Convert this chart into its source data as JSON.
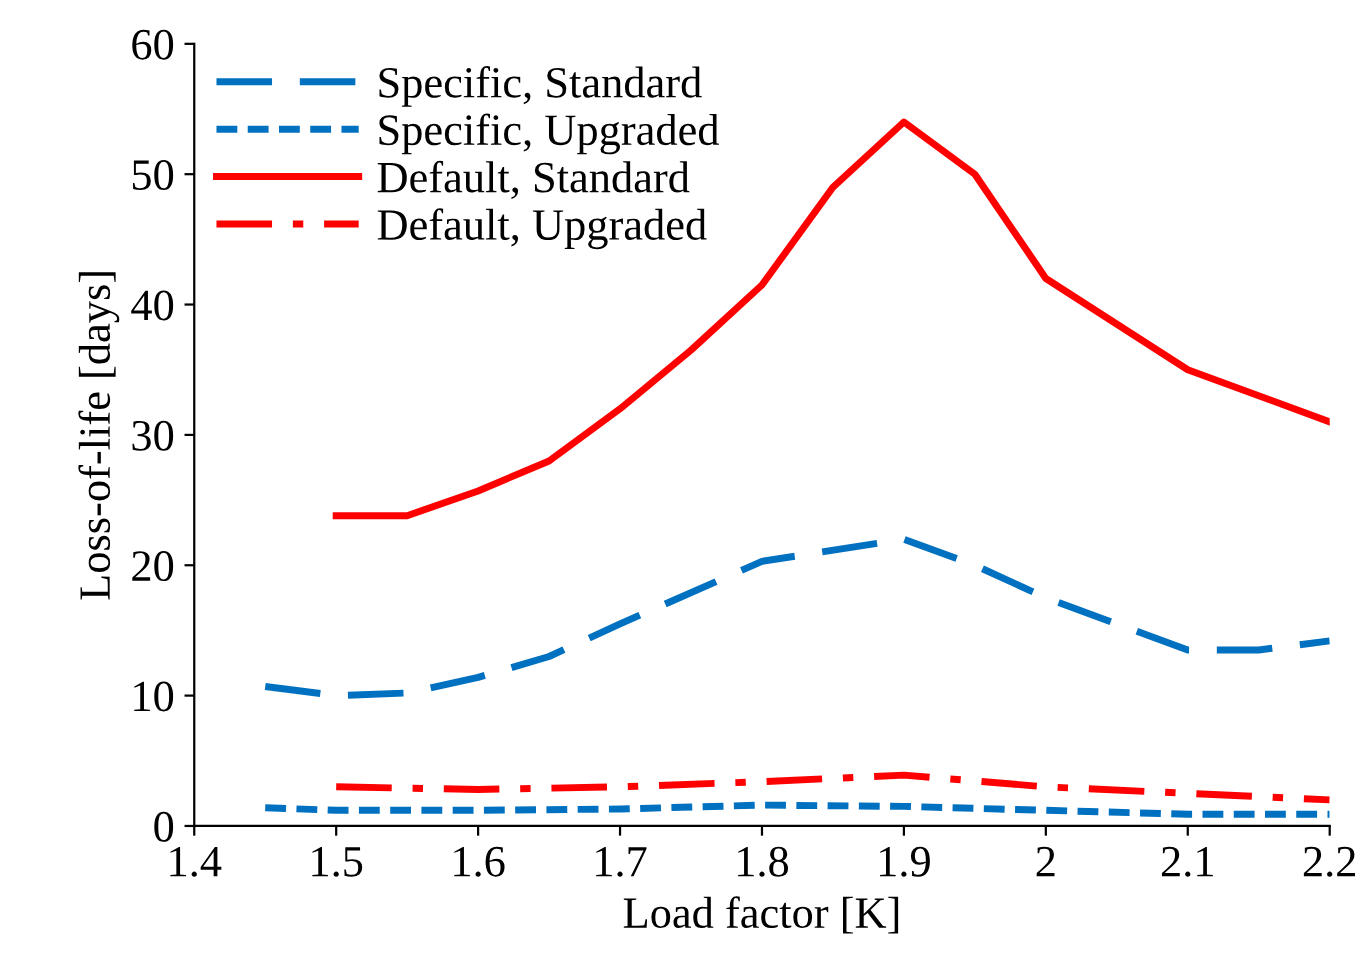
{
  "chart_data": {
    "type": "line",
    "xlabel": "Load factor [K]",
    "ylabel": "Loss-of-life [days]",
    "xlim": [
      1.4,
      2.2
    ],
    "xticks": [
      1.4,
      1.5,
      1.6,
      1.7,
      1.8,
      1.9,
      2,
      2.1,
      2.2
    ],
    "ylim": [
      0,
      60
    ],
    "yticks": [
      0,
      10,
      20,
      30,
      40,
      50,
      60
    ],
    "grid": false,
    "legend": "top left",
    "marker": "none",
    "series": [
      {
        "name": "Specific, Standard",
        "color": "#0070c0",
        "line_style": "longdash",
        "x": [
          1.45,
          1.5,
          1.55,
          1.6,
          1.65,
          1.7,
          1.8,
          1.9,
          1.95,
          2.0,
          2.1,
          2.15,
          2.2
        ],
        "values": [
          10.7,
          10.0,
          10.2,
          11.4,
          13.0,
          15.5,
          20.3,
          22.0,
          20.0,
          17.5,
          13.5,
          13.5,
          14.2
        ]
      },
      {
        "name": "Specific, Upgraded",
        "color": "#0070c0",
        "line_style": "dashed",
        "x": [
          1.45,
          1.5,
          1.6,
          1.7,
          1.8,
          1.9,
          2.0,
          2.1,
          2.2
        ],
        "values": [
          1.4,
          1.2,
          1.2,
          1.3,
          1.6,
          1.5,
          1.2,
          0.9,
          0.9
        ]
      },
      {
        "name": "Default, Standard",
        "color": "#ff0000",
        "line_style": "solid",
        "x": [
          1.5,
          1.55,
          1.6,
          1.65,
          1.7,
          1.75,
          1.8,
          1.85,
          1.9,
          1.95,
          2.0,
          2.1,
          2.2
        ],
        "values": [
          23.8,
          23.8,
          25.7,
          28.0,
          32.0,
          36.5,
          41.5,
          49.0,
          54.0,
          50.0,
          42.0,
          35.0,
          31.0
        ]
      },
      {
        "name": "Default, Upgraded",
        "color": "#ff0000",
        "line_style": "dashdot",
        "x": [
          1.5,
          1.6,
          1.7,
          1.8,
          1.9,
          2.0,
          2.1,
          2.2
        ],
        "values": [
          3.0,
          2.8,
          3.0,
          3.4,
          3.9,
          3.0,
          2.5,
          2.0
        ]
      }
    ]
  }
}
